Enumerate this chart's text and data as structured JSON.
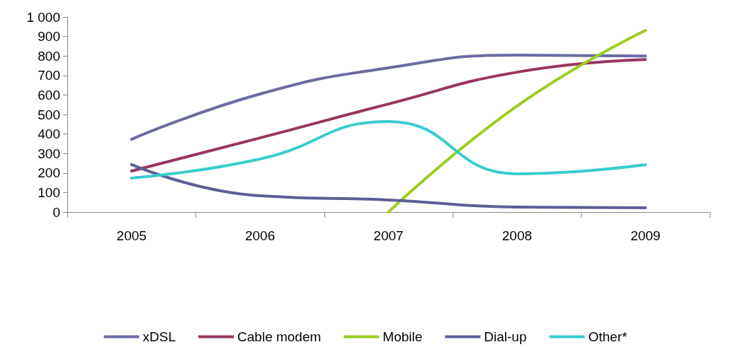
{
  "chart_data": {
    "type": "line",
    "categories": [
      "2005",
      "2006",
      "2007",
      "2008",
      "2009"
    ],
    "series": [
      {
        "name": "xDSL",
        "color": "#6b6ba3",
        "values": [
          373,
          605,
          739,
          804,
          800
        ]
      },
      {
        "name": "Cable modem",
        "color": "#983660",
        "values": [
          210,
          380,
          554,
          717,
          782
        ]
      },
      {
        "name": "Mobile",
        "color": "#9acd1e",
        "values": [
          null,
          null,
          0,
          543,
          931
        ]
      },
      {
        "name": "Dial-up",
        "color": "#5e5e96",
        "values": [
          243,
          83,
          62,
          25,
          22
        ]
      },
      {
        "name": "Other*",
        "color": "#38cccc",
        "values": [
          174,
          272,
          464,
          196,
          243
        ]
      }
    ],
    "ylim": [
      0,
      1000
    ],
    "yticks": [
      0,
      100,
      200,
      300,
      400,
      500,
      600,
      700,
      800,
      900,
      {
        "value": 1000,
        "label": "1 000"
      }
    ],
    "grid": false,
    "legend": "bottom",
    "marker": "none",
    "line_style": "solid"
  }
}
